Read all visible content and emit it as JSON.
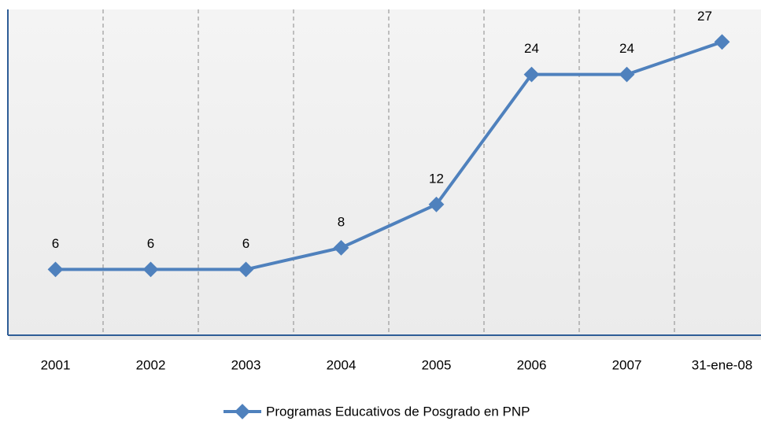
{
  "chart_data": {
    "type": "line",
    "categories": [
      "2001",
      "2002",
      "2003",
      "2004",
      "2005",
      "2006",
      "2007",
      "31-ene-08"
    ],
    "series": [
      {
        "name": "Programas Educativos de Posgrado en PNP",
        "color": "#4f81bd",
        "values": [
          6,
          6,
          6,
          8,
          12,
          24,
          24,
          27
        ]
      }
    ],
    "ylim": [
      0,
      30
    ],
    "grid": true,
    "legend": "bottom"
  }
}
